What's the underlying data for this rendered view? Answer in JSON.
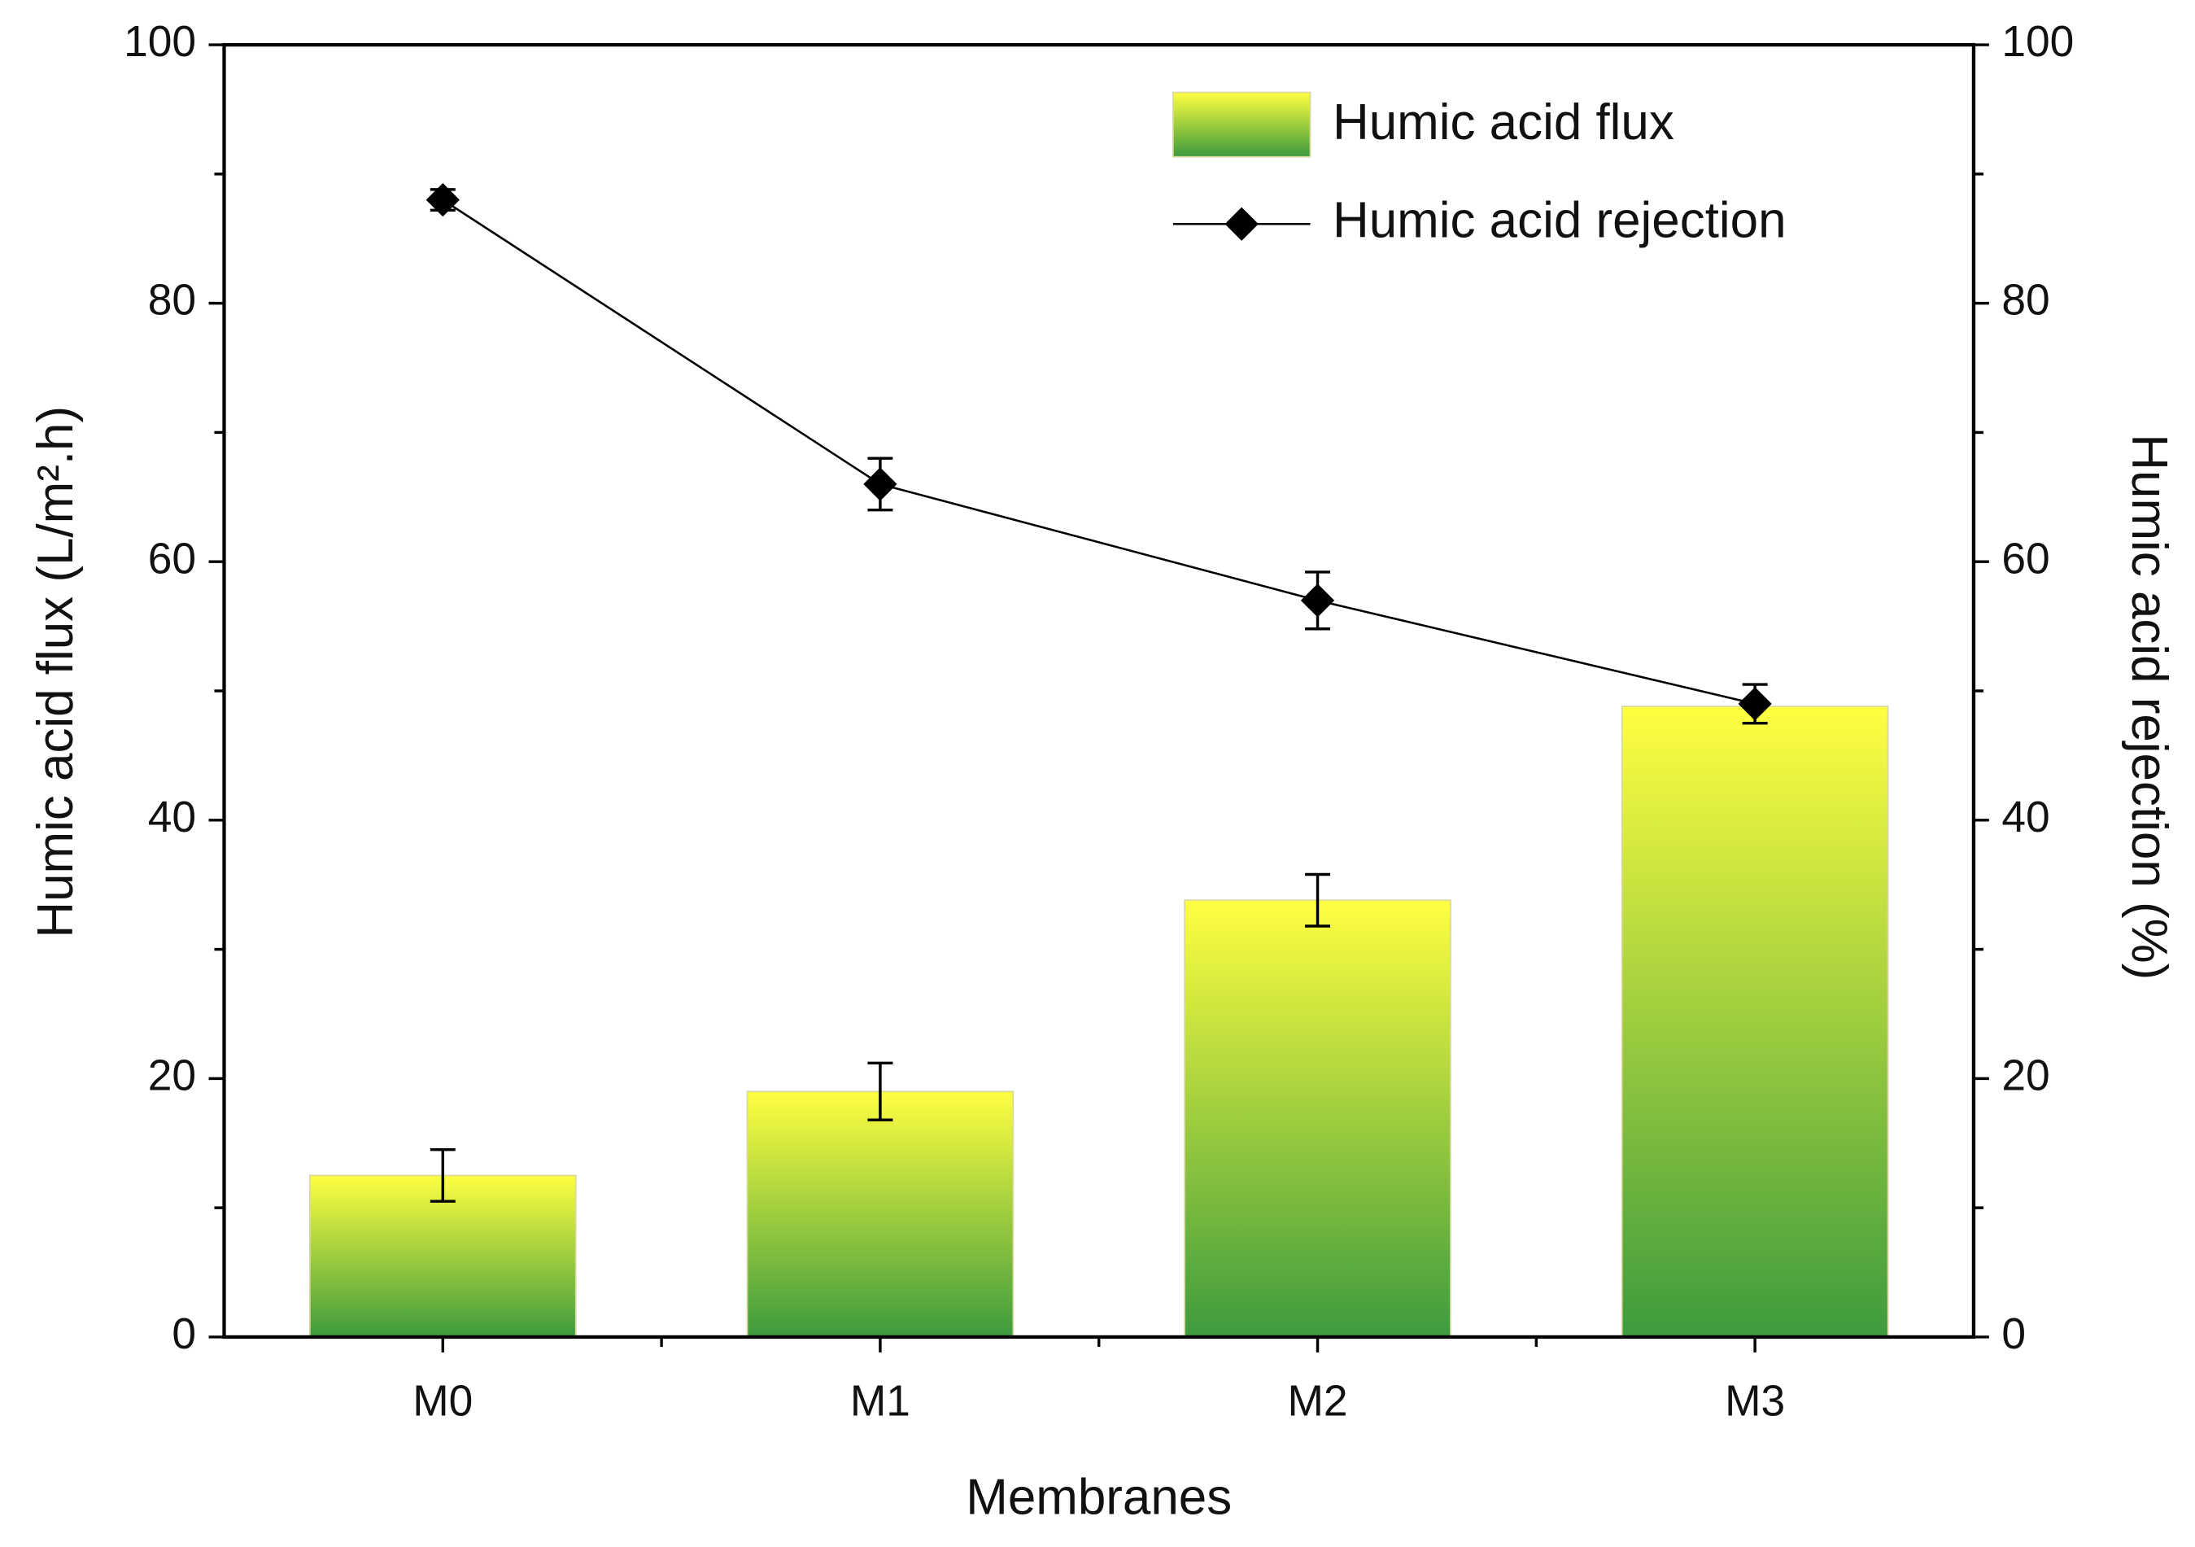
{
  "chart_data": {
    "type": "bar+line",
    "xlabel": "Membranes",
    "ylabel": "Humic acid flux (L/m².h)",
    "y2label": "Humic acid rejection (%)",
    "categories": [
      "M0",
      "M1",
      "M2",
      "M3"
    ],
    "ylim": [
      0,
      100
    ],
    "yticks": [
      0,
      20,
      40,
      60,
      80,
      100
    ],
    "yminorticks": [
      10,
      30,
      50,
      70,
      90
    ],
    "y2lim": [
      0,
      100
    ],
    "y2ticks": [
      0,
      20,
      40,
      60,
      80,
      100
    ],
    "y2minorticks": [
      10,
      30,
      50,
      70,
      90
    ],
    "legend": "top-right",
    "series": [
      {
        "name": "Humic acid flux",
        "type": "bar",
        "color": [
          "#ffff40",
          "#3d9b3d"
        ],
        "values": [
          12.5,
          19,
          33.8,
          48.8
        ],
        "errors": [
          2,
          2.2,
          2,
          null
        ]
      },
      {
        "name": "Humic acid rejection",
        "type": "line",
        "axis": "y2",
        "color": "#000000",
        "values": [
          88,
          66,
          57,
          49
        ],
        "errors": [
          0.8,
          2,
          2.2,
          1.5
        ]
      }
    ]
  }
}
